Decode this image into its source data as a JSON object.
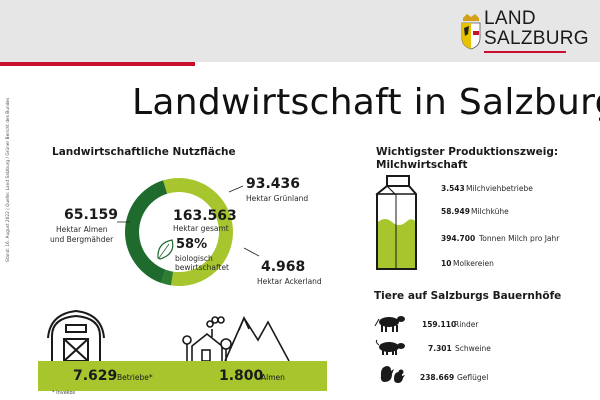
{
  "header": {
    "logo_line1": "LAND",
    "logo_line2": "SALZBURG",
    "title": "Landwirtschaft in Salzburg"
  },
  "side_note": "Stand: 16. August 2022 | Quelle: Land Salzburg / Grüner Bericht des Bundes",
  "colors": {
    "red": "#c8102e",
    "dark_green": "#1f6b2e",
    "light_green": "#a7c62d",
    "gray": "#e6e6e6"
  },
  "chart_data": {
    "type": "pie",
    "title": "Landwirtschaftliche Nutzfläche",
    "unit": "Hektar",
    "total": {
      "value": "163.563",
      "label": "Hektar gesamt"
    },
    "organic": {
      "value": "58%",
      "label_line1": "biologisch",
      "label_line2": "bewirtschaftet"
    },
    "segments": [
      {
        "name": "Grünland",
        "value": 93436,
        "value_text": "93.436",
        "label": "Hektar Grünland",
        "color": "#a7c62d"
      },
      {
        "name": "Ackerland",
        "value": 4968,
        "value_text": "4.968",
        "label": "Hektar Ackerland",
        "color": "#2e7d32"
      },
      {
        "name": "Almen und Bergmähder",
        "value": 65159,
        "value_text": "65.159",
        "label_line1": "Hektar Almen",
        "label_line2": "und Bergmähder",
        "color": "#1f6b2e"
      }
    ]
  },
  "farms": {
    "betriebe_value": "7.629",
    "betriebe_label": "Betriebe*",
    "almen_value": "1.800",
    "almen_label": "Almen",
    "footnote": "* Invekos"
  },
  "milk": {
    "title_line1": "Wichtigster Produktionszweig:",
    "title_line2": "Milchwirtschaft",
    "stats": [
      {
        "value": "3.543",
        "label": "Milchviehbetriebe"
      },
      {
        "value": "58.949",
        "label": "Milchkühe"
      },
      {
        "value": "394.700",
        "label": "Tonnen Milch pro Jahr"
      },
      {
        "value": "10",
        "label": "Molkereien"
      }
    ]
  },
  "animals": {
    "title": "Tiere auf Salzburgs Bauernhöfe",
    "items": [
      {
        "value": "159.110",
        "label": "Rinder",
        "icon": "cow-icon"
      },
      {
        "value": "7.301",
        "label": "Schweine",
        "icon": "pig-icon"
      },
      {
        "value": "238.669",
        "label": "Geflügel",
        "icon": "chicken-icon"
      }
    ]
  }
}
